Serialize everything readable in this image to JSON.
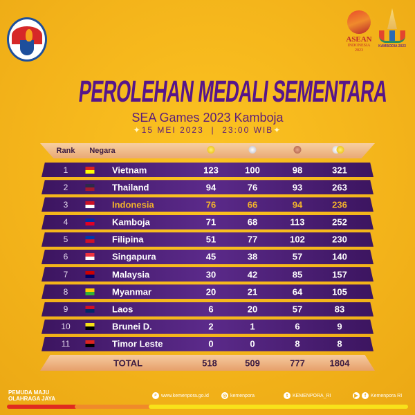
{
  "header": {
    "title": "PEROLEHAN MEDALI SEMENTARA",
    "subtitle": "SEA Games 2023 Kamboja",
    "date": "15 MEI 2023",
    "separator": "|",
    "time": "23:00 WIB",
    "logos": {
      "left": "Kementerian Pemuda dan Olahraga Republik Indonesia",
      "asean": [
        "ASEAN",
        "INDONESIA",
        "2023"
      ],
      "kamboja": "KAMBODIA 2023"
    }
  },
  "table": {
    "columns": {
      "rank": "Rank",
      "country": "Negara",
      "gold": "gold-medal-icon",
      "silver": "silver-medal-icon",
      "bronze": "bronze-medal-icon",
      "total": "total-medals-icon"
    },
    "rows": [
      {
        "rank": "1",
        "country": "Vietnam",
        "gold": "123",
        "silver": "100",
        "bronze": "98",
        "total": "321",
        "flag": [
          "#da251d",
          "#ffff00"
        ]
      },
      {
        "rank": "2",
        "country": "Thailand",
        "gold": "94",
        "silver": "76",
        "bronze": "93",
        "total": "263",
        "flag": [
          "#2d2a4a",
          "#a51931"
        ]
      },
      {
        "rank": "3",
        "country": "Indonesia",
        "gold": "76",
        "silver": "66",
        "bronze": "94",
        "total": "236",
        "flag": [
          "#ce1126",
          "#ffffff"
        ],
        "highlight": true
      },
      {
        "rank": "4",
        "country": "Kamboja",
        "gold": "71",
        "silver": "68",
        "bronze": "113",
        "total": "252",
        "flag": [
          "#032ea1",
          "#e00025"
        ]
      },
      {
        "rank": "5",
        "country": "Filipina",
        "gold": "51",
        "silver": "77",
        "bronze": "102",
        "total": "230",
        "flag": [
          "#0038a8",
          "#ce1126"
        ]
      },
      {
        "rank": "6",
        "country": "Singapura",
        "gold": "45",
        "silver": "38",
        "bronze": "57",
        "total": "140",
        "flag": [
          "#ef3340",
          "#ffffff"
        ]
      },
      {
        "rank": "7",
        "country": "Malaysia",
        "gold": "30",
        "silver": "42",
        "bronze": "85",
        "total": "157",
        "flag": [
          "#cc0001",
          "#010066"
        ]
      },
      {
        "rank": "8",
        "country": "Myanmar",
        "gold": "20",
        "silver": "21",
        "bronze": "64",
        "total": "105",
        "flag": [
          "#fecb00",
          "#34b233"
        ]
      },
      {
        "rank": "9",
        "country": "Laos",
        "gold": "6",
        "silver": "20",
        "bronze": "57",
        "total": "83",
        "flag": [
          "#ce1126",
          "#002868"
        ]
      },
      {
        "rank": "10",
        "country": "Brunei D.",
        "gold": "2",
        "silver": "1",
        "bronze": "6",
        "total": "9",
        "flag": [
          "#f7e017",
          "#000000"
        ]
      },
      {
        "rank": "11",
        "country": "Timor Leste",
        "gold": "0",
        "silver": "0",
        "bronze": "8",
        "total": "8",
        "flag": [
          "#dc241f",
          "#000000"
        ]
      }
    ],
    "total": {
      "label": "TOTAL",
      "gold": "518",
      "silver": "509",
      "bronze": "777",
      "total": "1804"
    }
  },
  "footer": {
    "slogan": [
      "PEMUDA MAJU",
      "OLAHRAGA JAYA"
    ],
    "website": "www.kemenpora.go.id",
    "instagram": "kemenpora",
    "twitter": "KEMENPORA_RI",
    "youtube_facebook": "Kemenpora RI"
  },
  "colors": {
    "background": "#f5b81c",
    "purple": "#57158a",
    "row": "#4a1f6e",
    "highlight": "#f4b42a"
  }
}
